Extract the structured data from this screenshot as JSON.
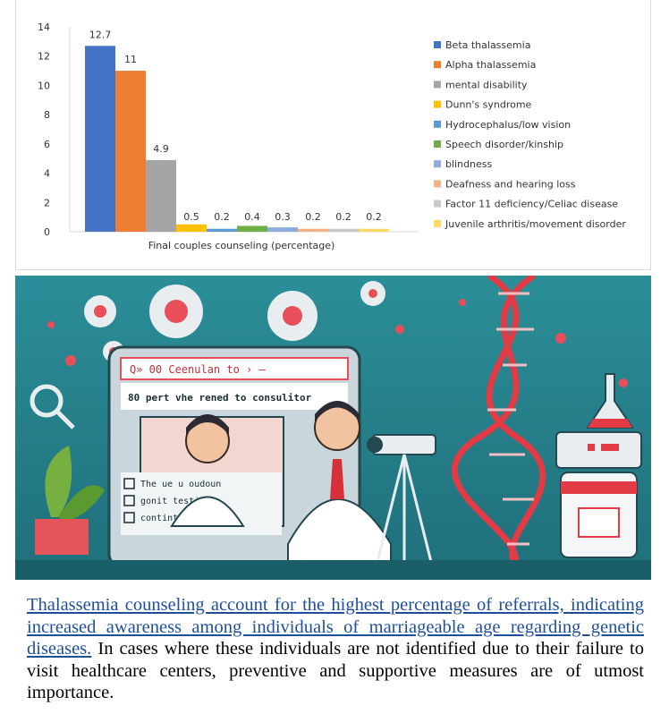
{
  "chart_data": {
    "type": "bar",
    "xlabel": "Final couples counseling (percentage)",
    "ylim": [
      0,
      14
    ],
    "yticks": [
      0,
      2,
      4,
      6,
      8,
      10,
      12,
      14
    ],
    "grid": false,
    "legend_position": "right",
    "series": [
      {
        "name": "Beta thalassemia",
        "value": 12.7,
        "label": "12.7",
        "color": "#4472c4"
      },
      {
        "name": "Alpha thalassemia",
        "value": 11,
        "label": "11",
        "color": "#ed7d31"
      },
      {
        "name": "mental disability",
        "value": 4.9,
        "label": "4.9",
        "color": "#a5a5a5"
      },
      {
        "name": "Dunn's syndrome",
        "value": 0.5,
        "label": "0.5",
        "color": "#ffc000"
      },
      {
        "name": "Hydrocephalus/low vision",
        "value": 0.2,
        "label": "0.2",
        "color": "#5b9bd5"
      },
      {
        "name": "Speech disorder/kinship",
        "value": 0.4,
        "label": "0.4",
        "color": "#70ad47"
      },
      {
        "name": "blindness",
        "value": 0.3,
        "label": "0.3",
        "color": "#8faadc"
      },
      {
        "name": "Deafness and hearing loss",
        "value": 0.2,
        "label": "0.2",
        "color": "#f4b183"
      },
      {
        "name": "Factor 11 deficiency/Celiac disease",
        "value": 0.2,
        "label": "0.2",
        "color": "#c9c9c9"
      },
      {
        "name": "Juvenile arthritis/movement disorder",
        "value": 0.2,
        "label": "0.2",
        "color": "#ffd966"
      }
    ]
  },
  "illustration": {
    "screen_title": "Q» 00 Ceenulan to › —",
    "screen_heading": "80 pert vhe rened to consulitor",
    "checklist": [
      "The ue u oudoun",
      "gonit testing",
      "contint"
    ]
  },
  "caption": {
    "link_text": "Thalassemia counseling account for the highest percentage of referrals, indicating increased awareness among individuals of marriageable age regarding genetic diseases.",
    "body_text": " In cases where these individuals are not identified due to their failure to visit healthcare centers, preventive and supportive measures are of utmost importance."
  }
}
